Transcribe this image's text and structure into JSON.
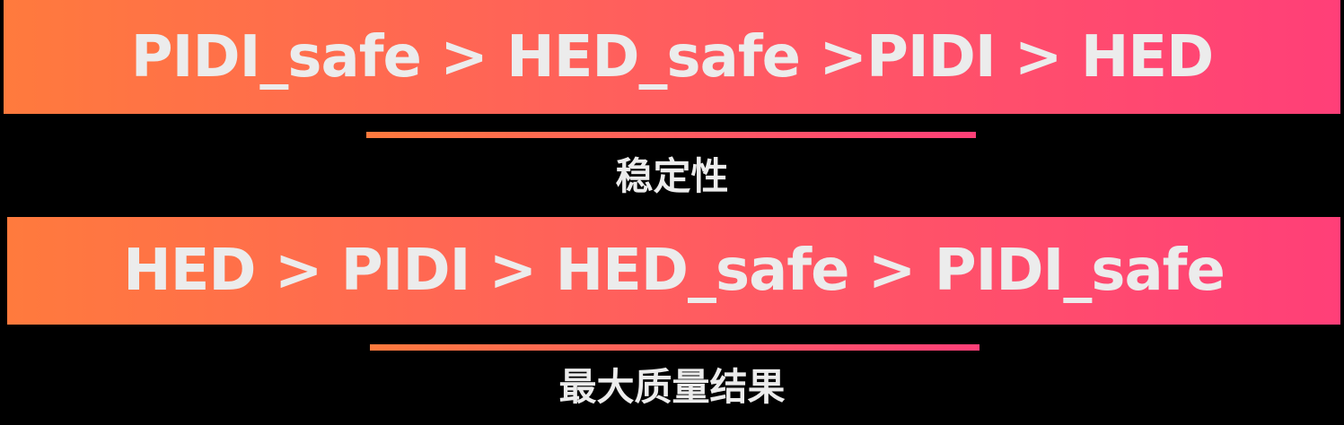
{
  "rankings": [
    {
      "order_text": "PIDI_safe > HED_safe >PIDI > HED",
      "criterion": "稳定性"
    },
    {
      "order_text": "HED > PIDI > HED_safe > PIDI_safe",
      "criterion": "最大质量结果"
    }
  ],
  "colors": {
    "gradient_start": "#ff7a3d",
    "gradient_end": "#ff3f78",
    "text": "#ececec",
    "background": "#000000"
  }
}
